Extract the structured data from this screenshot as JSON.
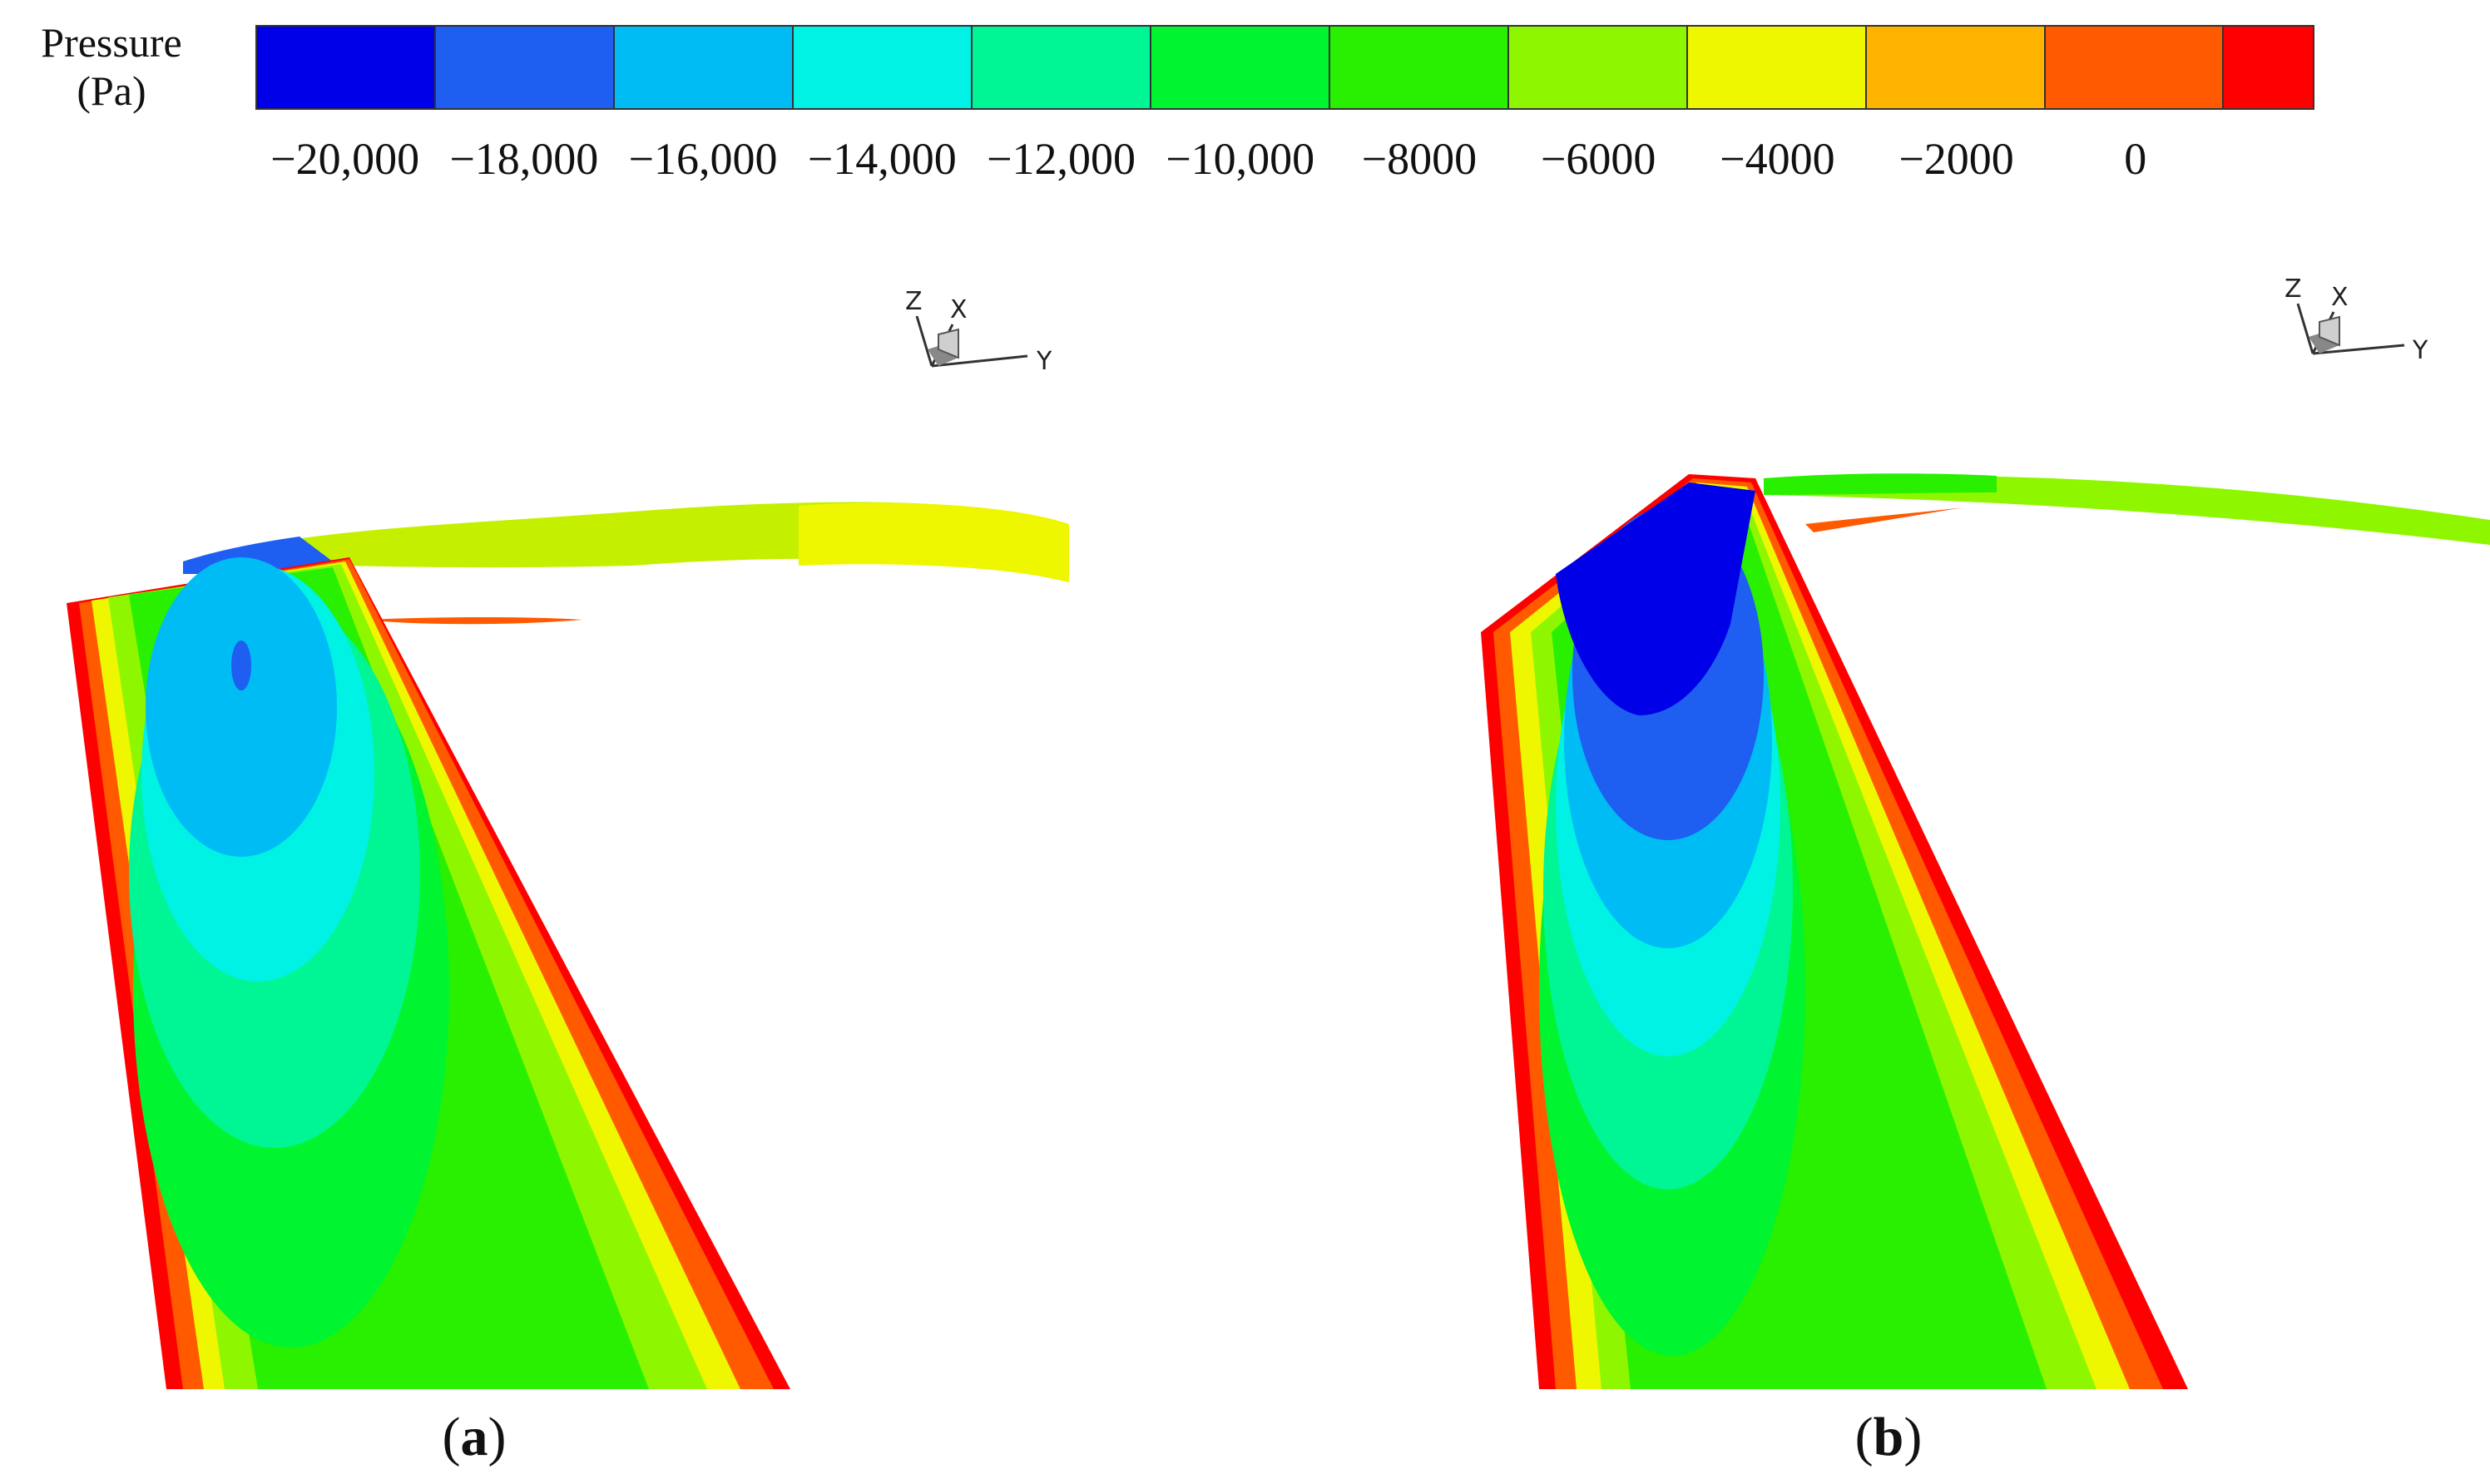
{
  "legend": {
    "title_line1": "Pressure",
    "title_line2": "(Pa)",
    "colors": [
      "#0000e8",
      "#1e5ef0",
      "#00bcf5",
      "#00f2e4",
      "#00f595",
      "#00f530",
      "#28f000",
      "#8ef700",
      "#eef700",
      "#ffb400",
      "#ff5a00",
      "#ff0000"
    ],
    "ticks": [
      "−20,000",
      "−18,000",
      "−16,000",
      "−14,000",
      "−12,000",
      "−10,000",
      "−8000",
      "−6000",
      "−4000",
      "−2000",
      "0"
    ]
  },
  "axes_triad": {
    "z": "Z",
    "x": "X",
    "y": "Y"
  },
  "panels": [
    {
      "label": "a",
      "caption_open": "(",
      "caption_close": ")"
    },
    {
      "label": "b",
      "caption_open": "(",
      "caption_close": ")"
    }
  ]
}
